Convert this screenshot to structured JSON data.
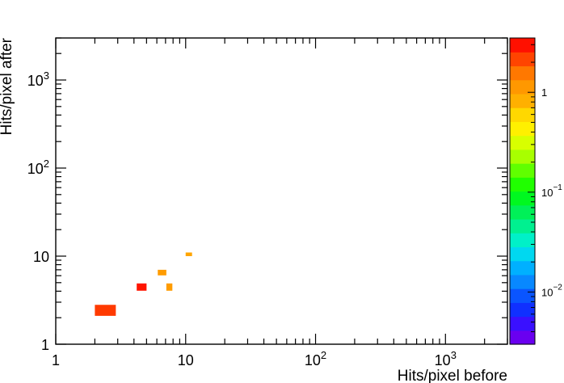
{
  "chart_data": {
    "type": "heatmap",
    "title": "",
    "xlabel": "Hits/pixel before",
    "ylabel": "Hits/pixel after",
    "x_scale": "log",
    "y_scale": "log",
    "xlim": [
      1,
      3000
    ],
    "ylim": [
      1,
      3000
    ],
    "x_ticks": [
      {
        "value": 1,
        "base": "1",
        "exp": ""
      },
      {
        "value": 10,
        "base": "10",
        "exp": ""
      },
      {
        "value": 100,
        "base": "10",
        "exp": "2"
      },
      {
        "value": 1000,
        "base": "10",
        "exp": "3"
      }
    ],
    "y_ticks": [
      {
        "value": 1,
        "base": "1",
        "exp": ""
      },
      {
        "value": 10,
        "base": "10",
        "exp": ""
      },
      {
        "value": 100,
        "base": "10",
        "exp": "2"
      },
      {
        "value": 1000,
        "base": "10",
        "exp": "3"
      }
    ],
    "grid": false,
    "colorbar": {
      "scale": "log",
      "range": [
        0.003,
        3.5
      ],
      "ticks": [
        {
          "value": 0.01,
          "base": "10",
          "exp": "−2"
        },
        {
          "value": 0.1,
          "base": "10",
          "exp": "−1"
        },
        {
          "value": 1,
          "base": "1",
          "exp": ""
        }
      ],
      "colors": [
        "#6a00f0",
        "#3a10ff",
        "#1030ff",
        "#0a55ff",
        "#0888ff",
        "#00b0ff",
        "#00d8f0",
        "#00f0c8",
        "#00f090",
        "#00f058",
        "#00f820",
        "#20ff00",
        "#60ff00",
        "#a8ff00",
        "#d8ff00",
        "#fff000",
        "#ffd800",
        "#ffb000",
        "#ff9800",
        "#ff7800",
        "#ff4400",
        "#ff1000"
      ]
    },
    "cells": [
      {
        "x0": 2.0,
        "x1": 2.9,
        "y0": 2.1,
        "y1": 2.8,
        "value": 2.2,
        "color": "#ff3a00"
      },
      {
        "x0": 4.2,
        "x1": 5.0,
        "y0": 4.05,
        "y1": 4.9,
        "value": 3.2,
        "color": "#ff1500"
      },
      {
        "x0": 6.1,
        "x1": 7.1,
        "y0": 6.05,
        "y1": 7.0,
        "value": 1.3,
        "color": "#ff9c00"
      },
      {
        "x0": 7.1,
        "x1": 7.9,
        "y0": 4.05,
        "y1": 4.9,
        "value": 1.3,
        "color": "#ff9c00"
      },
      {
        "x0": 10.0,
        "x1": 11.2,
        "y0": 10.0,
        "y1": 11.0,
        "value": 1.3,
        "color": "#ffa500"
      }
    ]
  }
}
